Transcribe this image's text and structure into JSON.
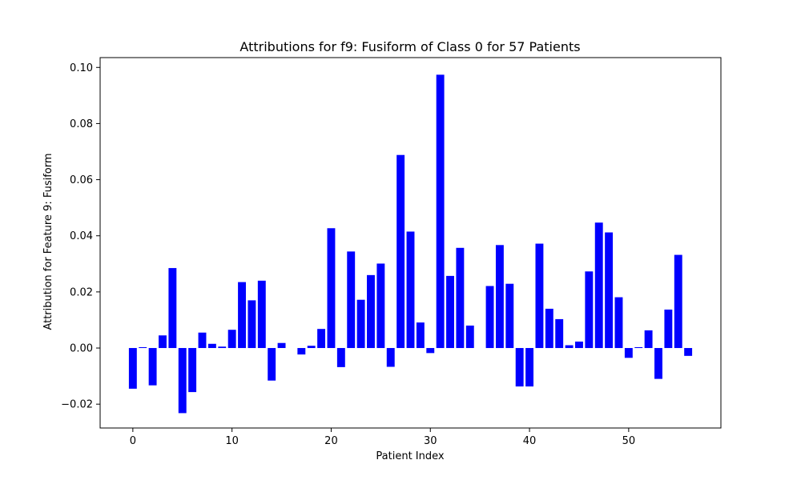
{
  "chart_data": {
    "type": "bar",
    "title": "Attributions for f9: Fusiform of Class 0 for 57 Patients",
    "xlabel": "Patient Index",
    "ylabel": "Attribution for Feature 9: Fusiform",
    "bar_color": "#0000ff",
    "xlim": [
      -3.3,
      59.3
    ],
    "ylim": [
      -0.0285,
      0.1035
    ],
    "xticks": [
      0,
      10,
      20,
      30,
      40,
      50
    ],
    "xtick_labels": [
      "0",
      "10",
      "20",
      "30",
      "40",
      "50"
    ],
    "yticks": [
      -0.02,
      0.0,
      0.02,
      0.04,
      0.06,
      0.08,
      0.1
    ],
    "ytick_labels": [
      "−0.02",
      "0.00",
      "0.02",
      "0.04",
      "0.06",
      "0.08",
      "0.10"
    ],
    "grid": false,
    "legend": false,
    "x": [
      0,
      1,
      2,
      3,
      4,
      5,
      6,
      7,
      8,
      9,
      10,
      11,
      12,
      13,
      14,
      15,
      16,
      17,
      18,
      19,
      20,
      21,
      22,
      23,
      24,
      25,
      26,
      27,
      28,
      29,
      30,
      31,
      32,
      33,
      34,
      35,
      36,
      37,
      38,
      39,
      40,
      41,
      42,
      43,
      44,
      45,
      46,
      47,
      48,
      49,
      50,
      51,
      52,
      53,
      54,
      55,
      56
    ],
    "values": [
      -0.0145,
      0.0003,
      -0.0133,
      0.0045,
      0.0285,
      -0.0232,
      -0.0157,
      0.0055,
      0.0015,
      0.0005,
      0.0065,
      0.0235,
      0.017,
      0.024,
      -0.0116,
      0.0018,
      0.0,
      -0.0023,
      0.0008,
      0.0068,
      0.0427,
      -0.0068,
      0.0344,
      0.0172,
      0.026,
      0.0301,
      -0.0067,
      0.0688,
      0.0415,
      0.0091,
      -0.0018,
      0.0974,
      0.0257,
      0.0357,
      0.008,
      0.0,
      0.0221,
      0.0367,
      0.0229,
      -0.0137,
      -0.0137,
      0.0372,
      0.014,
      0.0103,
      0.001,
      0.0023,
      0.0273,
      0.0447,
      0.0412,
      0.0181,
      -0.0035,
      0.0003,
      0.0063,
      -0.011,
      0.0137,
      0.0332,
      -0.0028
    ]
  }
}
